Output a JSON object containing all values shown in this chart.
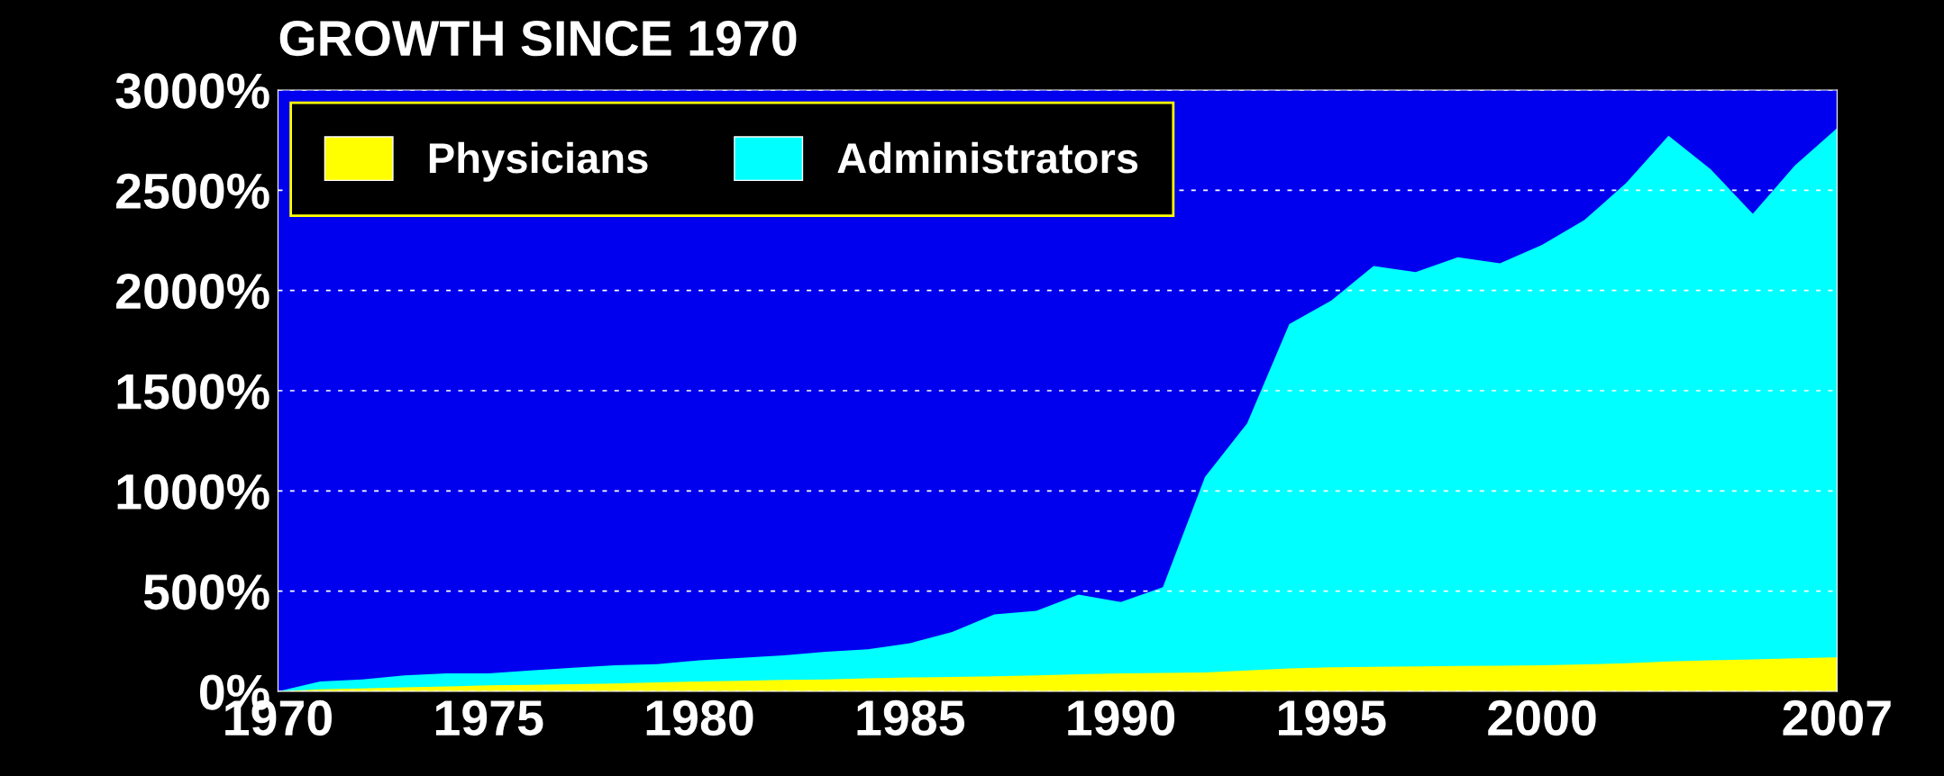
{
  "chart_data": {
    "type": "area",
    "title": "GROWTH SINCE 1970",
    "x": [
      1970,
      1971,
      1972,
      1973,
      1974,
      1975,
      1976,
      1977,
      1978,
      1979,
      1980,
      1981,
      1982,
      1983,
      1984,
      1985,
      1986,
      1987,
      1988,
      1989,
      1990,
      1991,
      1992,
      1993,
      1994,
      1995,
      1996,
      1997,
      1998,
      1999,
      2000,
      2001,
      2002,
      2003,
      2004,
      2005,
      2006,
      2007
    ],
    "series": [
      {
        "name": "Administrators",
        "color": "#00ffff",
        "values": [
          0,
          50,
          60,
          80,
          90,
          90,
          105,
          118,
          130,
          136,
          155,
          167,
          180,
          198,
          210,
          241,
          297,
          384,
          402,
          483,
          446,
          520,
          1070,
          1337,
          1832,
          1950,
          2122,
          2092,
          2166,
          2135,
          2228,
          2351,
          2537,
          2772,
          2605,
          2382,
          2624,
          2810
        ]
      },
      {
        "name": "Physicians",
        "color": "#ffff00",
        "values": [
          0,
          10,
          15,
          20,
          25,
          30,
          33,
          36,
          40,
          45,
          50,
          53,
          57,
          60,
          65,
          70,
          72,
          75,
          80,
          85,
          90,
          92,
          95,
          105,
          115,
          120,
          123,
          125,
          127,
          128,
          130,
          135,
          140,
          150,
          155,
          160,
          165,
          170
        ]
      }
    ],
    "xlim": [
      1970,
      2007
    ],
    "ylim": [
      0,
      3000
    ],
    "xticks": [
      1970,
      1975,
      1980,
      1985,
      1990,
      1995,
      2000,
      2007
    ],
    "yticks": [
      {
        "value": 0,
        "label": "0%"
      },
      {
        "value": 500,
        "label": "500%"
      },
      {
        "value": 1000,
        "label": "1000%"
      },
      {
        "value": 1500,
        "label": "1500%"
      },
      {
        "value": 2000,
        "label": "2000%"
      },
      {
        "value": 2500,
        "label": "2500%"
      },
      {
        "value": 3000,
        "label": "3000%"
      }
    ],
    "grid": "y",
    "legend": "top left"
  }
}
